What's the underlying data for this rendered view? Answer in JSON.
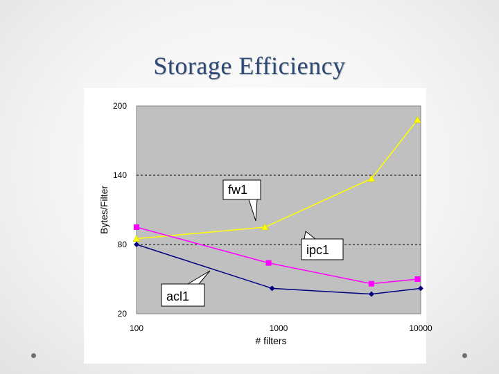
{
  "slide": {
    "title": "Storage Efficiency"
  },
  "colors": {
    "plot_bg": "#c0c0c0",
    "grid": "#000000",
    "fw1": "#ffff00",
    "ipc1": "#ff00ff",
    "acl1": "#000080"
  },
  "chart_data": {
    "type": "line",
    "title": "",
    "xlabel": "# filters",
    "ylabel": "Bytes/Filter",
    "x_scale": "log",
    "xlim": [
      100,
      10000
    ],
    "ylim": [
      20,
      200
    ],
    "x_ticks": [
      "100",
      "1000",
      "10000"
    ],
    "y_ticks": [
      "20",
      "80",
      "140",
      "200"
    ],
    "grid": "dashed horizontal",
    "legend": "callout labels",
    "series": [
      {
        "name": "fw1",
        "marker": "triangle",
        "color": "#ffff00",
        "x": [
          100,
          800,
          4500,
          9500
        ],
        "y": [
          85,
          95,
          137,
          188
        ]
      },
      {
        "name": "ipc1",
        "marker": "square",
        "color": "#ff00ff",
        "x": [
          100,
          850,
          4500,
          9500
        ],
        "y": [
          95,
          64,
          46,
          50
        ]
      },
      {
        "name": "acl1",
        "marker": "diamond",
        "color": "#000080",
        "x": [
          100,
          900,
          4500,
          10000
        ],
        "y": [
          80,
          42,
          37,
          42
        ]
      }
    ]
  }
}
